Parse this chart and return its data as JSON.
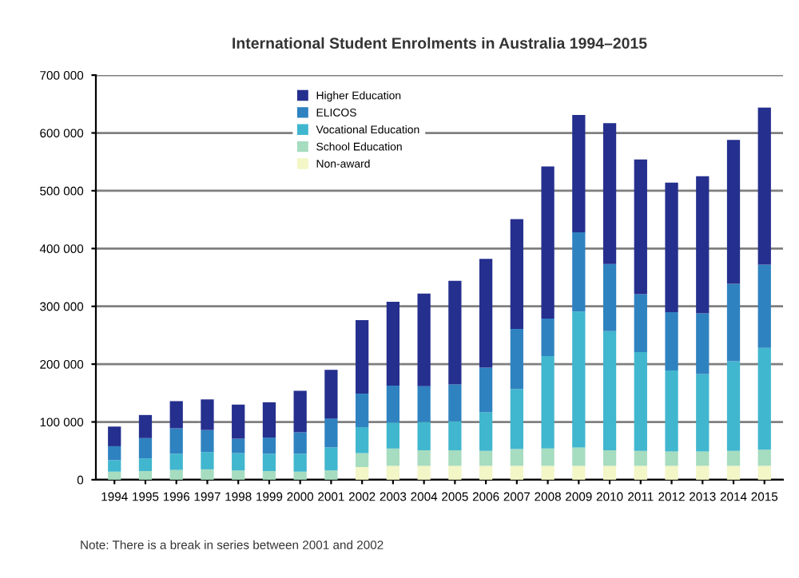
{
  "chart_data": {
    "type": "bar",
    "stacked": true,
    "title": "International Student Enrolments in Australia 1994–2015",
    "categories": [
      "1994",
      "1995",
      "1996",
      "1997",
      "1998",
      "1999",
      "2000",
      "2001",
      "2002",
      "2003",
      "2004",
      "2005",
      "2006",
      "2007",
      "2008",
      "2009",
      "2010",
      "2011",
      "2012",
      "2013",
      "2014",
      "2015"
    ],
    "series": [
      {
        "name": "Non-award",
        "color": "#f3f6c6",
        "values": [
          null,
          null,
          null,
          null,
          null,
          null,
          null,
          null,
          22000,
          24000,
          24000,
          24000,
          24000,
          24000,
          24000,
          24000,
          24000,
          24000,
          24000,
          24000,
          24000,
          24000
        ]
      },
      {
        "name": "School Education",
        "color": "#a6dcbf",
        "values": [
          14000,
          15000,
          17000,
          18000,
          16000,
          15000,
          14000,
          16000,
          24000,
          30000,
          27000,
          27000,
          26000,
          29000,
          30000,
          32000,
          27000,
          26000,
          25000,
          25000,
          26000,
          28000
        ]
      },
      {
        "name": "Vocational Education",
        "color": "#41b6cf",
        "values": [
          20000,
          22000,
          28000,
          30000,
          30000,
          30000,
          31000,
          40000,
          45000,
          45000,
          49000,
          50000,
          67000,
          104000,
          160000,
          235000,
          206000,
          171000,
          140000,
          134000,
          155000,
          176000
        ]
      },
      {
        "name": "ELICOS",
        "color": "#2f82c0",
        "values": [
          24000,
          35000,
          44000,
          38000,
          25000,
          28000,
          37000,
          50000,
          58000,
          64000,
          62000,
          64000,
          77000,
          104000,
          65000,
          137000,
          116000,
          100000,
          101000,
          105000,
          134000,
          144000
        ]
      },
      {
        "name": "Higher Education",
        "color": "#252f8e",
        "values": [
          34000,
          40000,
          47000,
          53000,
          59000,
          61000,
          72000,
          84000,
          127000,
          145000,
          160000,
          179000,
          188000,
          190000,
          263000,
          203000,
          244000,
          233000,
          224000,
          237000,
          249000,
          272000
        ]
      }
    ],
    "ylim": [
      0,
      700000
    ],
    "yticks": [
      {
        "value": 0,
        "label": "0"
      },
      {
        "value": 100000,
        "label": "100 000"
      },
      {
        "value": 200000,
        "label": "200 000"
      },
      {
        "value": 300000,
        "label": "300 000"
      },
      {
        "value": 400000,
        "label": "400 000"
      },
      {
        "value": 500000,
        "label": "500 000"
      },
      {
        "value": 600000,
        "label": "600 000"
      },
      {
        "value": 700000,
        "label": "700 000"
      }
    ],
    "grid": "y",
    "legend": "top left",
    "annotations": [
      "Note: There is a break in series between 2001 and 2002"
    ]
  }
}
